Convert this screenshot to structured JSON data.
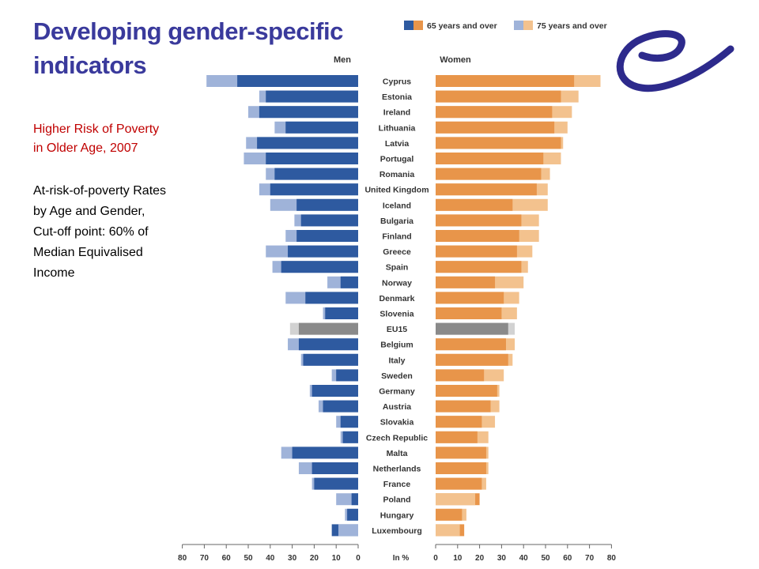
{
  "slide": {
    "title": "Developing gender-specific indicators",
    "subtitle": "Higher Risk of Poverty\nin Older Age, 2007",
    "description": "At-risk-of-poverty Rates\nby Age and Gender,\nCut-off point: 60% of\nMedian Equivalised\nIncome"
  },
  "logo": {
    "icon": "swirl-logo-icon",
    "color": "#2d2a8c"
  },
  "chart_data": {
    "type": "bar",
    "orientation": "horizontal-population-pyramid",
    "left_panel_label": "Men",
    "right_panel_label": "Women",
    "axis_unit_label": "In %",
    "x_ticks_left": [
      "80",
      "70",
      "60",
      "50",
      "40",
      "30",
      "20",
      "10",
      "0"
    ],
    "x_ticks_right": [
      "0",
      "10",
      "20",
      "30",
      "40",
      "50",
      "60",
      "70",
      "80"
    ],
    "xlim": [
      0,
      80
    ],
    "legend": [
      {
        "name": "65 years and over",
        "men_color": "#2e5aa0",
        "women_color": "#e8954a"
      },
      {
        "name": "75 years and over",
        "men_color": "#9fb3d9",
        "women_color": "#f3c28e"
      }
    ],
    "reference_colors": {
      "dark": "#8a8a8a",
      "light": "#d2d2d2"
    },
    "reference_category": "EU15",
    "categories": [
      "Cyprus",
      "Estonia",
      "Ireland",
      "Lithuania",
      "Latvia",
      "Portugal",
      "Romania",
      "United Kingdom",
      "Iceland",
      "Bulgaria",
      "Finland",
      "Greece",
      "Spain",
      "Norway",
      "Denmark",
      "Slovenia",
      "EU15",
      "Belgium",
      "Italy",
      "Sweden",
      "Germany",
      "Austria",
      "Slovakia",
      "Czech Republic",
      "Malta",
      "Netherlands",
      "France",
      "Poland",
      "Hungary",
      "Luxembourg"
    ],
    "series": [
      {
        "name": "65 years and over",
        "men": [
          55,
          42,
          45,
          33,
          46,
          42,
          38,
          40,
          28,
          26,
          28,
          32,
          35,
          8,
          24,
          15,
          27,
          27,
          25,
          10,
          21,
          16,
          8,
          7,
          30,
          21,
          20,
          3,
          5,
          12
        ],
        "women": [
          63,
          57,
          53,
          54,
          57,
          49,
          48,
          46,
          35,
          39,
          38,
          37,
          39,
          27,
          31,
          30,
          33,
          32,
          33,
          22,
          28,
          25,
          21,
          19,
          23,
          23,
          21,
          20,
          12,
          13
        ]
      },
      {
        "name": "75 years and over",
        "men": [
          69,
          45,
          50,
          38,
          51,
          52,
          42,
          45,
          40,
          29,
          33,
          42,
          39,
          14,
          33,
          16,
          31,
          32,
          26,
          12,
          22,
          18,
          10,
          8,
          35,
          27,
          21,
          10,
          6,
          9
        ],
        "women": [
          75,
          65,
          62,
          60,
          58,
          57,
          52,
          51,
          51,
          47,
          47,
          44,
          42,
          40,
          38,
          37,
          36,
          36,
          35,
          31,
          29,
          29,
          27,
          24,
          24,
          24,
          23,
          18,
          14,
          11
        ]
      }
    ]
  }
}
